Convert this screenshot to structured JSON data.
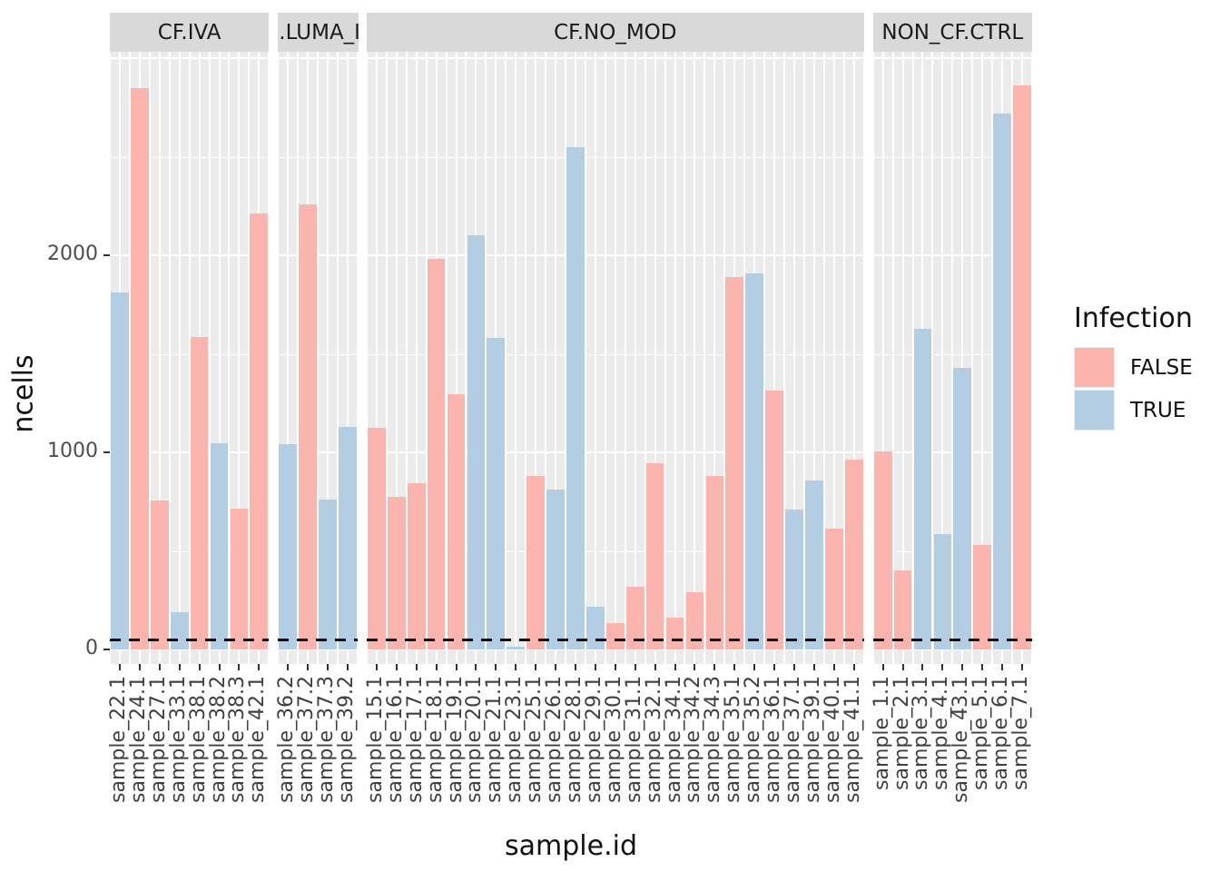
{
  "chart_data": {
    "type": "bar",
    "xlabel": "sample.id",
    "ylabel": "ncells",
    "ylim": [
      0,
      3040
    ],
    "yticks": [
      {
        "label": "0",
        "value": 0
      },
      {
        "label": "1000",
        "value": 1000
      },
      {
        "label": "2000",
        "value": 2000
      }
    ],
    "grid": {
      "major": [
        0,
        1000,
        2000,
        3000
      ],
      "minor": [
        500,
        1500,
        2500
      ],
      "color": "#ffffff",
      "panel_bg": "#ebebeb"
    },
    "hline": {
      "value": 50,
      "style": "dashed",
      "color": "#0a0a0a"
    },
    "legend": {
      "title": "Infection",
      "position": "right",
      "entries": [
        {
          "label": "FALSE",
          "color": "#FBB4AE"
        },
        {
          "label": "TRUE",
          "color": "#B3CDE3"
        }
      ]
    },
    "facets": [
      {
        "label": "CF.IVA",
        "label_clipped": false,
        "samples": [
          {
            "id": "sample_22.1",
            "infection": "TRUE",
            "ncells": 1810
          },
          {
            "id": "sample_24.1",
            "infection": "FALSE",
            "ncells": 2850
          },
          {
            "id": "sample_27.1",
            "infection": "FALSE",
            "ncells": 755
          },
          {
            "id": "sample_33.1",
            "infection": "TRUE",
            "ncells": 190
          },
          {
            "id": "sample_38.1",
            "infection": "FALSE",
            "ncells": 1585
          },
          {
            "id": "sample_38.2",
            "infection": "TRUE",
            "ncells": 1045
          },
          {
            "id": "sample_38.3",
            "infection": "FALSE",
            "ncells": 715
          },
          {
            "id": "sample_42.1",
            "infection": "FALSE",
            "ncells": 2210
          }
        ]
      },
      {
        "label": ".LUMA_IV",
        "label_clipped": true,
        "samples": [
          {
            "id": "sample_36.2",
            "infection": "TRUE",
            "ncells": 1040
          },
          {
            "id": "sample_37.2",
            "infection": "FALSE",
            "ncells": 2260
          },
          {
            "id": "sample_37.3",
            "infection": "TRUE",
            "ncells": 760
          },
          {
            "id": "sample_39.2",
            "infection": "TRUE",
            "ncells": 1130
          }
        ]
      },
      {
        "label": "CF.NO_MOD",
        "label_clipped": false,
        "samples": [
          {
            "id": "sample_15.1",
            "infection": "FALSE",
            "ncells": 1125
          },
          {
            "id": "sample_16.1",
            "infection": "FALSE",
            "ncells": 775
          },
          {
            "id": "sample_17.1",
            "infection": "FALSE",
            "ncells": 845
          },
          {
            "id": "sample_18.1",
            "infection": "FALSE",
            "ncells": 1980
          },
          {
            "id": "sample_19.1",
            "infection": "FALSE",
            "ncells": 1295
          },
          {
            "id": "sample_20.1",
            "infection": "TRUE",
            "ncells": 2100
          },
          {
            "id": "sample_21.1",
            "infection": "TRUE",
            "ncells": 1580
          },
          {
            "id": "sample_23.1",
            "infection": "TRUE",
            "ncells": 15
          },
          {
            "id": "sample_25.1",
            "infection": "FALSE",
            "ncells": 880
          },
          {
            "id": "sample_26.1",
            "infection": "TRUE",
            "ncells": 810
          },
          {
            "id": "sample_28.1",
            "infection": "TRUE",
            "ncells": 2550
          },
          {
            "id": "sample_29.1",
            "infection": "TRUE",
            "ncells": 215
          },
          {
            "id": "sample_30.1",
            "infection": "FALSE",
            "ncells": 135
          },
          {
            "id": "sample_31.1",
            "infection": "FALSE",
            "ncells": 320
          },
          {
            "id": "sample_32.1",
            "infection": "FALSE",
            "ncells": 945
          },
          {
            "id": "sample_34.1",
            "infection": "FALSE",
            "ncells": 160
          },
          {
            "id": "sample_34.2",
            "infection": "FALSE",
            "ncells": 290
          },
          {
            "id": "sample_34.3",
            "infection": "FALSE",
            "ncells": 880
          },
          {
            "id": "sample_35.1",
            "infection": "FALSE",
            "ncells": 1890
          },
          {
            "id": "sample_35.2",
            "infection": "TRUE",
            "ncells": 1910
          },
          {
            "id": "sample_36.1",
            "infection": "FALSE",
            "ncells": 1315
          },
          {
            "id": "sample_37.1",
            "infection": "TRUE",
            "ncells": 710
          },
          {
            "id": "sample_39.1",
            "infection": "TRUE",
            "ncells": 855
          },
          {
            "id": "sample_40.1",
            "infection": "FALSE",
            "ncells": 615
          },
          {
            "id": "sample_41.1",
            "infection": "FALSE",
            "ncells": 965
          }
        ]
      },
      {
        "label": "NON_CF.CTRL",
        "label_clipped": false,
        "samples": [
          {
            "id": "sample_1.1",
            "infection": "FALSE",
            "ncells": 1005
          },
          {
            "id": "sample_2.1",
            "infection": "FALSE",
            "ncells": 400
          },
          {
            "id": "sample_3.1",
            "infection": "TRUE",
            "ncells": 1625
          },
          {
            "id": "sample_4.1",
            "infection": "TRUE",
            "ncells": 585
          },
          {
            "id": "sample_43.1",
            "infection": "TRUE",
            "ncells": 1430
          },
          {
            "id": "sample_5.1",
            "infection": "FALSE",
            "ncells": 530
          },
          {
            "id": "sample_6.1",
            "infection": "TRUE",
            "ncells": 2720
          },
          {
            "id": "sample_7.1",
            "infection": "FALSE",
            "ncells": 2860
          }
        ]
      }
    ],
    "colors": {
      "FALSE": "#FBB4AE",
      "TRUE": "#B3CDE3",
      "panel_bg": "#ebebeb",
      "strip_bg": "#d9d9d9",
      "gridline": "#ffffff",
      "axis_text": "#4d4d4d",
      "title_text": "#111111"
    }
  }
}
